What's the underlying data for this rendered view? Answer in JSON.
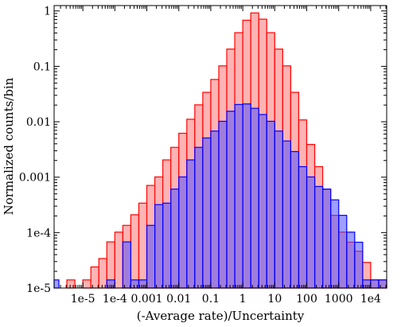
{
  "chart_data": {
    "type": "bar",
    "title": "",
    "xlabel": "(-Average rate)/Uncertainty",
    "ylabel": "Normalized counts/bin",
    "xscale": "log",
    "yscale": "log",
    "xlim": [
      1.26e-06,
      31623
    ],
    "ylim": [
      1e-05,
      1.25
    ],
    "bins_per_decade": 4,
    "grid": false,
    "legend": "none",
    "x_ticks": [
      {
        "value": 1e-05,
        "label": "1e-5"
      },
      {
        "value": 0.0001,
        "label": "1e-4"
      },
      {
        "value": 0.001,
        "label": "0.001"
      },
      {
        "value": 0.01,
        "label": "0.01"
      },
      {
        "value": 0.1,
        "label": "0.1"
      },
      {
        "value": 1,
        "label": "1"
      },
      {
        "value": 10,
        "label": "10"
      },
      {
        "value": 100,
        "label": "100"
      },
      {
        "value": 1000,
        "label": "1000"
      },
      {
        "value": 10000,
        "label": "1e4"
      }
    ],
    "y_ticks": [
      {
        "value": 1,
        "label": "1"
      },
      {
        "value": 0.1,
        "label": "0.1"
      },
      {
        "value": 0.01,
        "label": "0.01"
      },
      {
        "value": 0.001,
        "label": "0.001"
      },
      {
        "value": 0.0001,
        "label": "1e-4"
      },
      {
        "value": 1e-05,
        "label": "1e-5"
      }
    ],
    "series": [
      {
        "color": "#ff0000",
        "fill": "#ffb3b3",
        "bins": [
          {
            "x0": 1.78e-06,
            "x1": 3.16e-06,
            "value": 0
          },
          {
            "x0": 3.16e-06,
            "x1": 5.62e-06,
            "value": 1.4e-05
          },
          {
            "x0": 5.62e-06,
            "x1": 1e-05,
            "value": 0
          },
          {
            "x0": 1e-05,
            "x1": 1.78e-05,
            "value": 1.4e-05
          },
          {
            "x0": 1.78e-05,
            "x1": 3.16e-05,
            "value": 2.4e-05
          },
          {
            "x0": 3.16e-05,
            "x1": 5.62e-05,
            "value": 3.4e-05
          },
          {
            "x0": 5.62e-05,
            "x1": 0.0001,
            "value": 6.8e-05
          },
          {
            "x0": 0.0001,
            "x1": 0.000178,
            "value": 0.000102
          },
          {
            "x0": 0.000178,
            "x1": 0.000316,
            "value": 0.000135
          },
          {
            "x0": 0.000316,
            "x1": 0.000562,
            "value": 0.00021
          },
          {
            "x0": 0.000562,
            "x1": 0.001,
            "value": 0.00034
          },
          {
            "x0": 0.001,
            "x1": 0.00178,
            "value": 0.00071
          },
          {
            "x0": 0.00178,
            "x1": 0.00316,
            "value": 0.00101
          },
          {
            "x0": 0.00316,
            "x1": 0.00562,
            "value": 0.00205
          },
          {
            "x0": 0.00562,
            "x1": 0.01,
            "value": 0.00345
          },
          {
            "x0": 0.01,
            "x1": 0.0178,
            "value": 0.0062
          },
          {
            "x0": 0.0178,
            "x1": 0.0316,
            "value": 0.0111
          },
          {
            "x0": 0.0316,
            "x1": 0.0562,
            "value": 0.0202
          },
          {
            "x0": 0.0562,
            "x1": 0.1,
            "value": 0.034
          },
          {
            "x0": 0.1,
            "x1": 0.178,
            "value": 0.058
          },
          {
            "x0": 0.178,
            "x1": 0.316,
            "value": 0.102
          },
          {
            "x0": 0.316,
            "x1": 0.562,
            "value": 0.205
          },
          {
            "x0": 0.562,
            "x1": 1,
            "value": 0.405
          },
          {
            "x0": 1,
            "x1": 1.78,
            "value": 0.68
          },
          {
            "x0": 1.78,
            "x1": 3.16,
            "value": 0.92
          },
          {
            "x0": 3.16,
            "x1": 5.62,
            "value": 0.71
          },
          {
            "x0": 5.62,
            "x1": 10,
            "value": 0.405
          },
          {
            "x0": 10,
            "x1": 17.8,
            "value": 0.205
          },
          {
            "x0": 17.8,
            "x1": 31.6,
            "value": 0.102
          },
          {
            "x0": 31.6,
            "x1": 56.2,
            "value": 0.034
          },
          {
            "x0": 56.2,
            "x1": 100,
            "value": 0.0108
          },
          {
            "x0": 100,
            "x1": 178,
            "value": 0.0039
          },
          {
            "x0": 178,
            "x1": 316,
            "value": 0.00155
          },
          {
            "x0": 316,
            "x1": 562,
            "value": 0.00061
          },
          {
            "x0": 562,
            "x1": 1000,
            "value": 0.000205
          },
          {
            "x0": 1000,
            "x1": 1780,
            "value": 0.000102
          },
          {
            "x0": 1780,
            "x1": 3160,
            "value": 6.7e-05
          },
          {
            "x0": 3160,
            "x1": 5620,
            "value": 4.6e-05
          },
          {
            "x0": 5620,
            "x1": 10000,
            "value": 2.9e-05
          },
          {
            "x0": 10000,
            "x1": 17800,
            "value": 1.4e-05
          },
          {
            "x0": 17800,
            "x1": 31600,
            "value": 1.4e-05
          }
        ]
      },
      {
        "color": "#0000ff",
        "fill": "rgba(80,80,255,0.55)",
        "bins": [
          {
            "x0": 1.26e-06,
            "x1": 1.78e-06,
            "value": 1.4e-05
          },
          {
            "x0": 5.62e-05,
            "x1": 0.0001,
            "value": 1.4e-05
          },
          {
            "x0": 0.0001,
            "x1": 0.000178,
            "value": 0
          },
          {
            "x0": 0.000178,
            "x1": 0.000316,
            "value": 6.8e-05
          },
          {
            "x0": 0.000316,
            "x1": 0.000562,
            "value": 1.4e-05
          },
          {
            "x0": 0.000562,
            "x1": 0.001,
            "value": 1.4e-05
          },
          {
            "x0": 0.001,
            "x1": 0.00178,
            "value": 0.000135
          },
          {
            "x0": 0.00178,
            "x1": 0.00316,
            "value": 0.00032
          },
          {
            "x0": 0.00316,
            "x1": 0.00562,
            "value": 0.00034
          },
          {
            "x0": 0.00562,
            "x1": 0.01,
            "value": 0.00061
          },
          {
            "x0": 0.01,
            "x1": 0.0178,
            "value": 0.00101
          },
          {
            "x0": 0.0178,
            "x1": 0.0316,
            "value": 0.00205
          },
          {
            "x0": 0.0316,
            "x1": 0.0562,
            "value": 0.00345
          },
          {
            "x0": 0.0562,
            "x1": 0.1,
            "value": 0.0051
          },
          {
            "x0": 0.1,
            "x1": 0.178,
            "value": 0.0068
          },
          {
            "x0": 0.178,
            "x1": 0.316,
            "value": 0.0102
          },
          {
            "x0": 0.316,
            "x1": 0.562,
            "value": 0.0155
          },
          {
            "x0": 0.562,
            "x1": 1,
            "value": 0.0205
          },
          {
            "x0": 1,
            "x1": 1.78,
            "value": 0.021
          },
          {
            "x0": 1.78,
            "x1": 3.16,
            "value": 0.0175
          },
          {
            "x0": 3.16,
            "x1": 5.62,
            "value": 0.0135
          },
          {
            "x0": 5.62,
            "x1": 10,
            "value": 0.0102
          },
          {
            "x0": 10,
            "x1": 17.8,
            "value": 0.0068
          },
          {
            "x0": 17.8,
            "x1": 31.6,
            "value": 0.0045
          },
          {
            "x0": 31.6,
            "x1": 56.2,
            "value": 0.0029
          },
          {
            "x0": 56.2,
            "x1": 100,
            "value": 0.00155
          },
          {
            "x0": 100,
            "x1": 178,
            "value": 0.00101
          },
          {
            "x0": 178,
            "x1": 316,
            "value": 0.00068
          },
          {
            "x0": 316,
            "x1": 562,
            "value": 0.00061
          },
          {
            "x0": 562,
            "x1": 1000,
            "value": 0.00039
          },
          {
            "x0": 1000,
            "x1": 1780,
            "value": 0.000205
          },
          {
            "x0": 1780,
            "x1": 3160,
            "value": 0.000102
          },
          {
            "x0": 3160,
            "x1": 5620,
            "value": 6.7e-05
          },
          {
            "x0": 5620,
            "x1": 10000,
            "value": 1.4e-05
          },
          {
            "x0": 10000,
            "x1": 17800,
            "value": 1.4e-05
          },
          {
            "x0": 17800,
            "x1": 31600,
            "value": 1.4e-05
          }
        ]
      }
    ]
  }
}
